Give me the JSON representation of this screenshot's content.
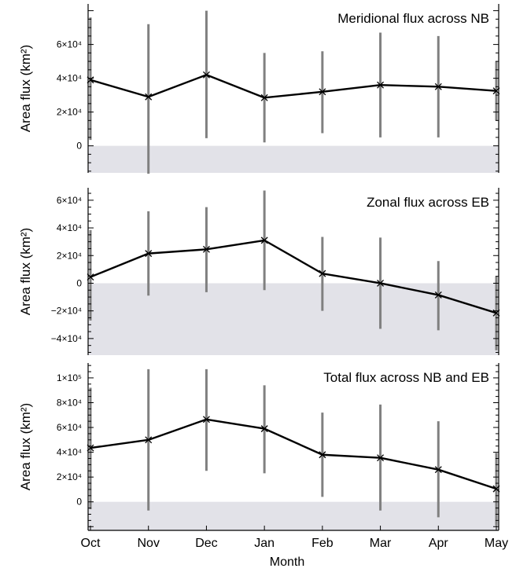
{
  "chart_data": [
    {
      "type": "line",
      "title": "Meridional flux across NB",
      "ylabel": "Area flux (km²)",
      "xlabel": "",
      "ylim": [
        -16000,
        84000
      ],
      "yticks": [
        0,
        20000,
        40000,
        60000
      ],
      "ytick_labels": [
        "0",
        "2×10⁴",
        "4×10⁴",
        "6×10⁴"
      ],
      "shade_below_zero": true,
      "categories": [
        "Oct",
        "Nov",
        "Dec",
        "Jan",
        "Feb",
        "Mar",
        "Apr",
        "May"
      ],
      "series": [
        {
          "values": [
            39000,
            29000,
            42000,
            28500,
            32000,
            36000,
            35000,
            32500
          ],
          "error_low": [
            3500,
            -16500,
            4500,
            2000,
            7500,
            5000,
            5000,
            15000
          ],
          "error_high": [
            76000,
            72000,
            80000,
            55000,
            56000,
            67000,
            65000,
            50000
          ]
        }
      ]
    },
    {
      "type": "line",
      "title": "Zonal flux across EB",
      "ylabel": "Area flux (km²)",
      "xlabel": "",
      "ylim": [
        -52000,
        69000
      ],
      "yticks": [
        -40000,
        -20000,
        0,
        20000,
        40000,
        60000
      ],
      "ytick_labels": [
        "−4×10⁴",
        "−2×10⁴",
        "0",
        "2×10⁴",
        "4×10⁴",
        "6×10⁴"
      ],
      "shade_below_zero": true,
      "categories": [
        "Oct",
        "Nov",
        "Dec",
        "Jan",
        "Feb",
        "Mar",
        "Apr",
        "May"
      ],
      "series": [
        {
          "values": [
            4500,
            21500,
            24500,
            31000,
            7000,
            0,
            -8500,
            -21500
          ],
          "error_low": [
            -27000,
            -9000,
            -6500,
            -5000,
            -20000,
            -33000,
            -34000,
            -48500
          ],
          "error_high": [
            38500,
            52000,
            55000,
            67000,
            33500,
            33000,
            16000,
            5000
          ]
        }
      ]
    },
    {
      "type": "line",
      "title": "Total flux across NB and EB",
      "ylabel": "Area flux (km²)",
      "xlabel": "Month",
      "ylim": [
        -23000,
        112000
      ],
      "yticks": [
        0,
        20000,
        40000,
        60000,
        80000,
        100000
      ],
      "ytick_labels": [
        "0",
        "2×10⁴",
        "4×10⁴",
        "6×10⁴",
        "8×10⁴",
        "1×10⁵"
      ],
      "shade_below_zero": true,
      "categories": [
        "Oct",
        "Nov",
        "Dec",
        "Jan",
        "Feb",
        "Mar",
        "Apr",
        "May"
      ],
      "series": [
        {
          "values": [
            43500,
            50000,
            66500,
            59000,
            38000,
            35500,
            26000,
            10500
          ],
          "error_low": [
            -6000,
            -7000,
            25000,
            23000,
            4000,
            -7000,
            -12500,
            -19000
          ],
          "error_high": [
            92000,
            107000,
            107000,
            94000,
            72000,
            78500,
            65000,
            39500
          ]
        }
      ]
    }
  ],
  "colors": {
    "line": "#000000",
    "error_bar": "#808080",
    "shade": "#e2e2e8",
    "axis": "#000000"
  }
}
